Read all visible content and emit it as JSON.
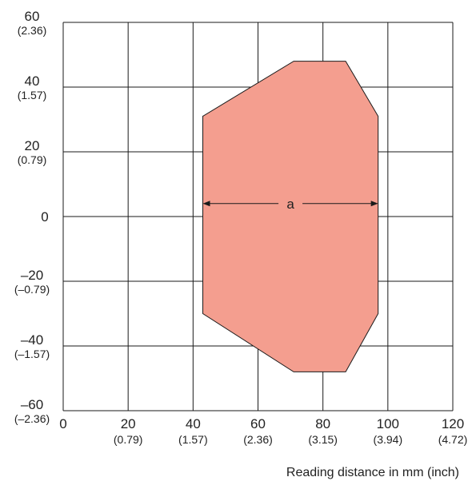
{
  "chart_data": {
    "type": "area",
    "title": "",
    "xlabel": "Reading distance in mm (inch)",
    "ylabel": "",
    "xlim": [
      0,
      120
    ],
    "ylim": [
      -60,
      60
    ],
    "grid": true,
    "x_ticks": [
      {
        "value": 0,
        "label": "0",
        "sublabel": ""
      },
      {
        "value": 20,
        "label": "20",
        "sublabel": "(0.79)"
      },
      {
        "value": 40,
        "label": "40",
        "sublabel": "(1.57)"
      },
      {
        "value": 60,
        "label": "60",
        "sublabel": "(2.36)"
      },
      {
        "value": 80,
        "label": "80",
        "sublabel": "(3.15)"
      },
      {
        "value": 100,
        "label": "100",
        "sublabel": "(3.94)"
      },
      {
        "value": 120,
        "label": "120",
        "sublabel": "(4.72)"
      }
    ],
    "y_ticks": [
      {
        "value": 60,
        "label": "60",
        "sublabel": "(2.36)"
      },
      {
        "value": 40,
        "label": "40",
        "sublabel": "(1.57)"
      },
      {
        "value": 20,
        "label": "20",
        "sublabel": "(0.79)"
      },
      {
        "value": 0,
        "label": "0",
        "sublabel": ""
      },
      {
        "value": -20,
        "label": "–20",
        "sublabel": "(–0.79)"
      },
      {
        "value": -40,
        "label": "–40",
        "sublabel": "(–1.57)"
      },
      {
        "value": -60,
        "label": "–60",
        "sublabel": "(–2.36)"
      }
    ],
    "reading_field": {
      "color": "#f49e8f",
      "outline": "#1a1a1a",
      "polygon": [
        [
          43,
          31
        ],
        [
          71,
          48
        ],
        [
          87,
          48
        ],
        [
          97,
          31
        ],
        [
          97,
          -30
        ],
        [
          87,
          -48
        ],
        [
          71,
          -48
        ],
        [
          43,
          -30
        ]
      ]
    },
    "annotation": {
      "label": "a",
      "x_start": 43,
      "x_end": 97,
      "y": 4
    }
  }
}
